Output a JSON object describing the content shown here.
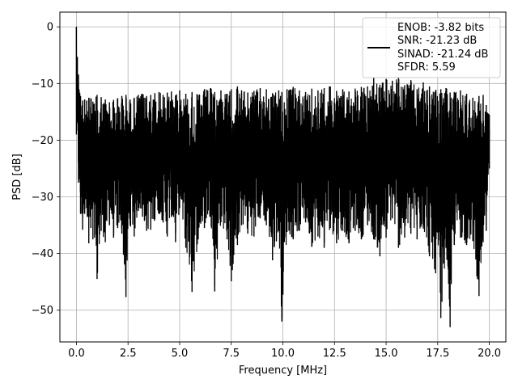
{
  "chart_data": {
    "type": "line",
    "title": "",
    "xlabel": "Frequency [MHz]",
    "ylabel": "PSD [dB]",
    "xlim": [
      -0.8,
      20.8
    ],
    "ylim": [
      -55.6,
      2.6
    ],
    "xticks": [
      0.0,
      2.5,
      5.0,
      7.5,
      10.0,
      12.5,
      15.0,
      17.5,
      20.0
    ],
    "xtick_labels": [
      "0.0",
      "2.5",
      "5.0",
      "7.5",
      "10.0",
      "12.5",
      "15.0",
      "17.5",
      "20.0"
    ],
    "yticks": [
      0,
      -10,
      -20,
      -30,
      -40,
      -50
    ],
    "ytick_labels": [
      "0",
      "−10",
      "−20",
      "−30",
      "−40",
      "−50"
    ],
    "grid": true,
    "line_color": "#000000",
    "legend": {
      "location": "upper right",
      "entries": [
        "ENOB: -3.82 bits",
        "SNR: -21.23 dB",
        "SINAD: -21.24 dB",
        "SFDR: 5.59"
      ]
    },
    "series": [
      {
        "x": [
          0.0,
          0.1,
          0.2,
          0.3,
          0.4,
          0.5,
          0.6,
          0.7,
          0.8,
          1.0,
          1.2,
          1.4,
          1.6,
          1.8,
          2.0,
          2.2,
          2.4,
          2.6,
          2.8,
          3.0,
          3.2,
          3.4,
          3.6,
          3.8,
          4.0,
          4.2,
          4.4,
          4.6,
          4.8,
          5.0,
          5.3,
          5.6,
          5.9,
          6.2,
          6.5,
          6.7,
          7.0,
          7.3,
          7.5,
          7.8,
          8.0,
          8.3,
          8.6,
          8.9,
          9.2,
          9.5,
          9.8,
          9.95,
          10.2,
          10.5,
          10.8,
          11.1,
          11.4,
          11.7,
          12.0,
          12.3,
          12.6,
          12.9,
          13.2,
          13.5,
          13.8,
          14.1,
          14.4,
          14.7,
          15.0,
          15.3,
          15.6,
          15.9,
          16.2,
          16.5,
          16.8,
          17.1,
          17.4,
          17.65,
          17.9,
          18.1,
          18.3,
          18.6,
          18.9,
          19.2,
          19.5,
          19.7,
          19.85,
          20.0
        ],
        "ymax": [
          0.0,
          -8.4,
          -12.2,
          -13.0,
          -12.8,
          -13.0,
          -12.5,
          -12.6,
          -13.2,
          -12.0,
          -12.4,
          -12.8,
          -13.3,
          -12.9,
          -12.6,
          -12.2,
          -12.0,
          -12.8,
          -12.5,
          -12.0,
          -11.8,
          -12.2,
          -12.0,
          -11.7,
          -11.5,
          -12.0,
          -11.6,
          -11.4,
          -12.1,
          -11.2,
          -11.8,
          -11.5,
          -12.0,
          -11.0,
          -10.8,
          -11.5,
          -11.2,
          -11.8,
          -11.0,
          -10.5,
          -11.2,
          -11.6,
          -11.3,
          -10.8,
          -11.0,
          -11.7,
          -11.2,
          -11.5,
          -11.0,
          -10.6,
          -11.2,
          -11.5,
          -10.9,
          -11.2,
          -10.8,
          -10.5,
          -11.3,
          -11.0,
          -11.4,
          -10.9,
          -10.6,
          -10.5,
          -9.0,
          -10.2,
          -9.2,
          -9.5,
          -9.0,
          -10.3,
          -9.4,
          -11.0,
          -9.8,
          -10.5,
          -11.2,
          -11.0,
          -10.8,
          -11.6,
          -11.5,
          -11.2,
          -11.8,
          -12.5,
          -12.2,
          -12.0,
          -13.8,
          -15.5
        ],
        "ymin": [
          -19.0,
          -27.5,
          -33.0,
          -35.8,
          -33.0,
          -32.0,
          -38.2,
          -35.5,
          -37.5,
          -44.5,
          -36.0,
          -38.0,
          -35.0,
          -37.2,
          -35.5,
          -36.5,
          -47.7,
          -35.0,
          -37.0,
          -32.5,
          -33.5,
          -36.0,
          -35.8,
          -34.0,
          -33.0,
          -34.5,
          -37.0,
          -33.5,
          -38.0,
          -32.0,
          -39.0,
          -46.8,
          -37.5,
          -35.5,
          -33.5,
          -46.7,
          -34.5,
          -37.5,
          -44.9,
          -38.5,
          -35.0,
          -36.5,
          -37.0,
          -33.8,
          -35.0,
          -41.2,
          -36.0,
          -52.0,
          -36.2,
          -37.5,
          -36.0,
          -34.5,
          -38.8,
          -37.0,
          -39.0,
          -35.5,
          -38.2,
          -36.0,
          -38.2,
          -36.0,
          -37.5,
          -35.0,
          -37.5,
          -40.5,
          -37.2,
          -33.8,
          -39.0,
          -37.2,
          -36.5,
          -37.5,
          -35.6,
          -40.5,
          -43.5,
          -51.4,
          -39.0,
          -53.0,
          -38.5,
          -37.2,
          -38.5,
          -37.8,
          -47.5,
          -38.0,
          -36.0,
          -25.0
        ]
      }
    ]
  }
}
